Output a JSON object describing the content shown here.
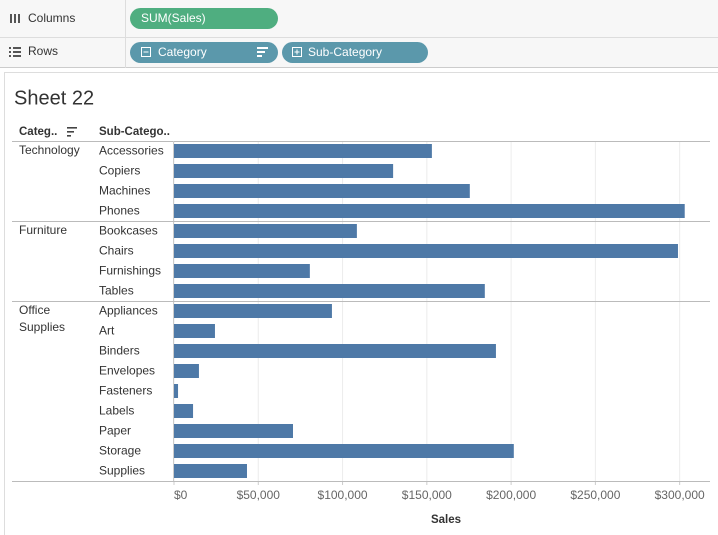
{
  "shelves": {
    "columns": {
      "label": "Columns",
      "pills": [
        "SUM(Sales)"
      ]
    },
    "rows": {
      "label": "Rows",
      "pills": [
        "Category",
        "Sub-Category"
      ]
    }
  },
  "chart_data": {
    "type": "bar",
    "orientation": "horizontal",
    "title": "Sheet 22",
    "row_headers": [
      "Categ..",
      "Sub-Catego.."
    ],
    "color": "#4e79a7",
    "grid": true,
    "groups": [
      {
        "name": "Technology",
        "categories": [
          "Accessories",
          "Copiers",
          "Machines",
          "Phones"
        ],
        "values": [
          153000,
          130000,
          175500,
          303000
        ]
      },
      {
        "name": "Furniture",
        "categories": [
          "Bookcases",
          "Chairs",
          "Furnishings",
          "Tables"
        ],
        "values": [
          108500,
          299000,
          80600,
          184400
        ]
      },
      {
        "name": "Office Supplies",
        "categories": [
          "Appliances",
          "Art",
          "Binders",
          "Envelopes",
          "Fasteners",
          "Labels",
          "Paper",
          "Storage",
          "Supplies"
        ],
        "values": [
          93700,
          24300,
          191000,
          14800,
          2400,
          11300,
          70600,
          201600,
          43300
        ]
      }
    ],
    "xlim": [
      0,
      318000
    ],
    "xticks": [
      {
        "value": 0,
        "label": "$0"
      },
      {
        "value": 50000,
        "label": "$50,000"
      },
      {
        "value": 100000,
        "label": "$100,000"
      },
      {
        "value": 150000,
        "label": "$150,000"
      },
      {
        "value": 200000,
        "label": "$200,000"
      },
      {
        "value": 250000,
        "label": "$250,000"
      },
      {
        "value": 300000,
        "label": "$300,000"
      }
    ],
    "x_label": "Sales"
  }
}
